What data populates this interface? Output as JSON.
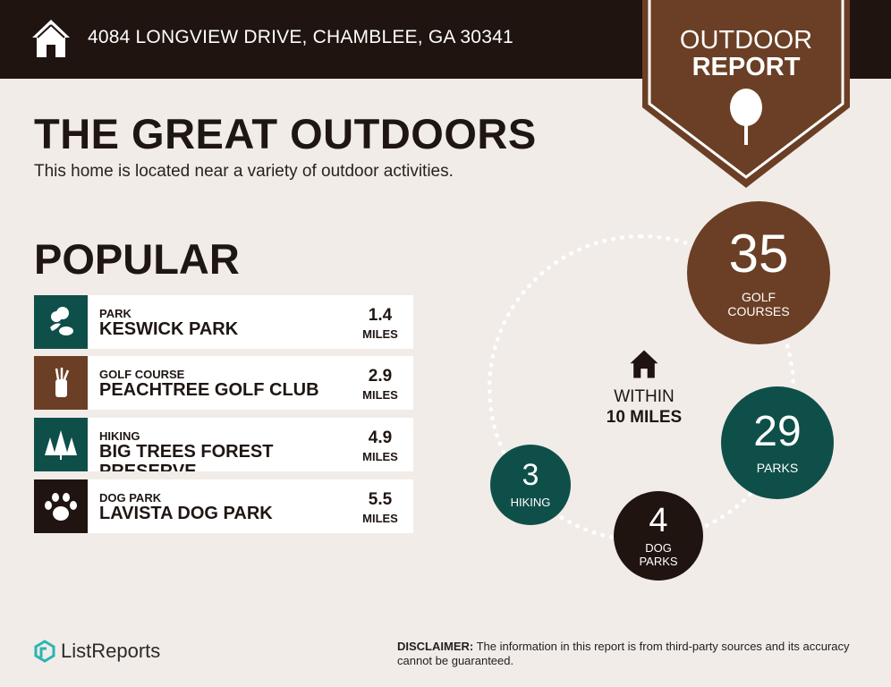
{
  "header": {
    "address": "4084 LONGVIEW DRIVE, CHAMBLEE, GA 30341",
    "badge_line1": "OUTDOOR",
    "badge_line2": "REPORT",
    "badge_icon": "tree-icon"
  },
  "title": "THE GREAT OUTDOORS",
  "subtitle": "This home is located near a variety of outdoor activities.",
  "popular": {
    "heading": "POPULAR",
    "items": [
      {
        "category": "PARK",
        "name": "KESWICK PARK",
        "distance": "1.4",
        "unit": "MILES",
        "icon": "park-icon",
        "color": "#0f4f4a"
      },
      {
        "category": "GOLF COURSE",
        "name": "PEACHTREE GOLF CLUB",
        "distance": "2.9",
        "unit": "MILES",
        "icon": "golf-bag-icon",
        "color": "#6b3f25"
      },
      {
        "category": "HIKING",
        "name": "BIG TREES FOREST PRESERVE",
        "distance": "4.9",
        "unit": "MILES",
        "icon": "pine-trees-icon",
        "color": "#0f4f4a"
      },
      {
        "category": "DOG PARK",
        "name": "LAVISTA DOG PARK",
        "distance": "5.5",
        "unit": "MILES",
        "icon": "paw-icon",
        "color": "#1f1410"
      }
    ]
  },
  "radius": {
    "within": "WITHIN",
    "distance": "10 MILES",
    "stats": [
      {
        "count": "35",
        "label1": "GOLF",
        "label2": "COURSES",
        "color": "#6b3f25"
      },
      {
        "count": "29",
        "label1": "PARKS",
        "label2": "",
        "color": "#0f4f4a"
      },
      {
        "count": "4",
        "label1": "DOG",
        "label2": "PARKS",
        "color": "#1f1410"
      },
      {
        "count": "3",
        "label1": "HIKING",
        "label2": "",
        "color": "#0f4f4a"
      }
    ]
  },
  "footer": {
    "logo": "ListReports",
    "disclaimer_label": "DISCLAIMER:",
    "disclaimer_text": " The information in this report is from third-party sources and its accuracy cannot be guaranteed."
  }
}
